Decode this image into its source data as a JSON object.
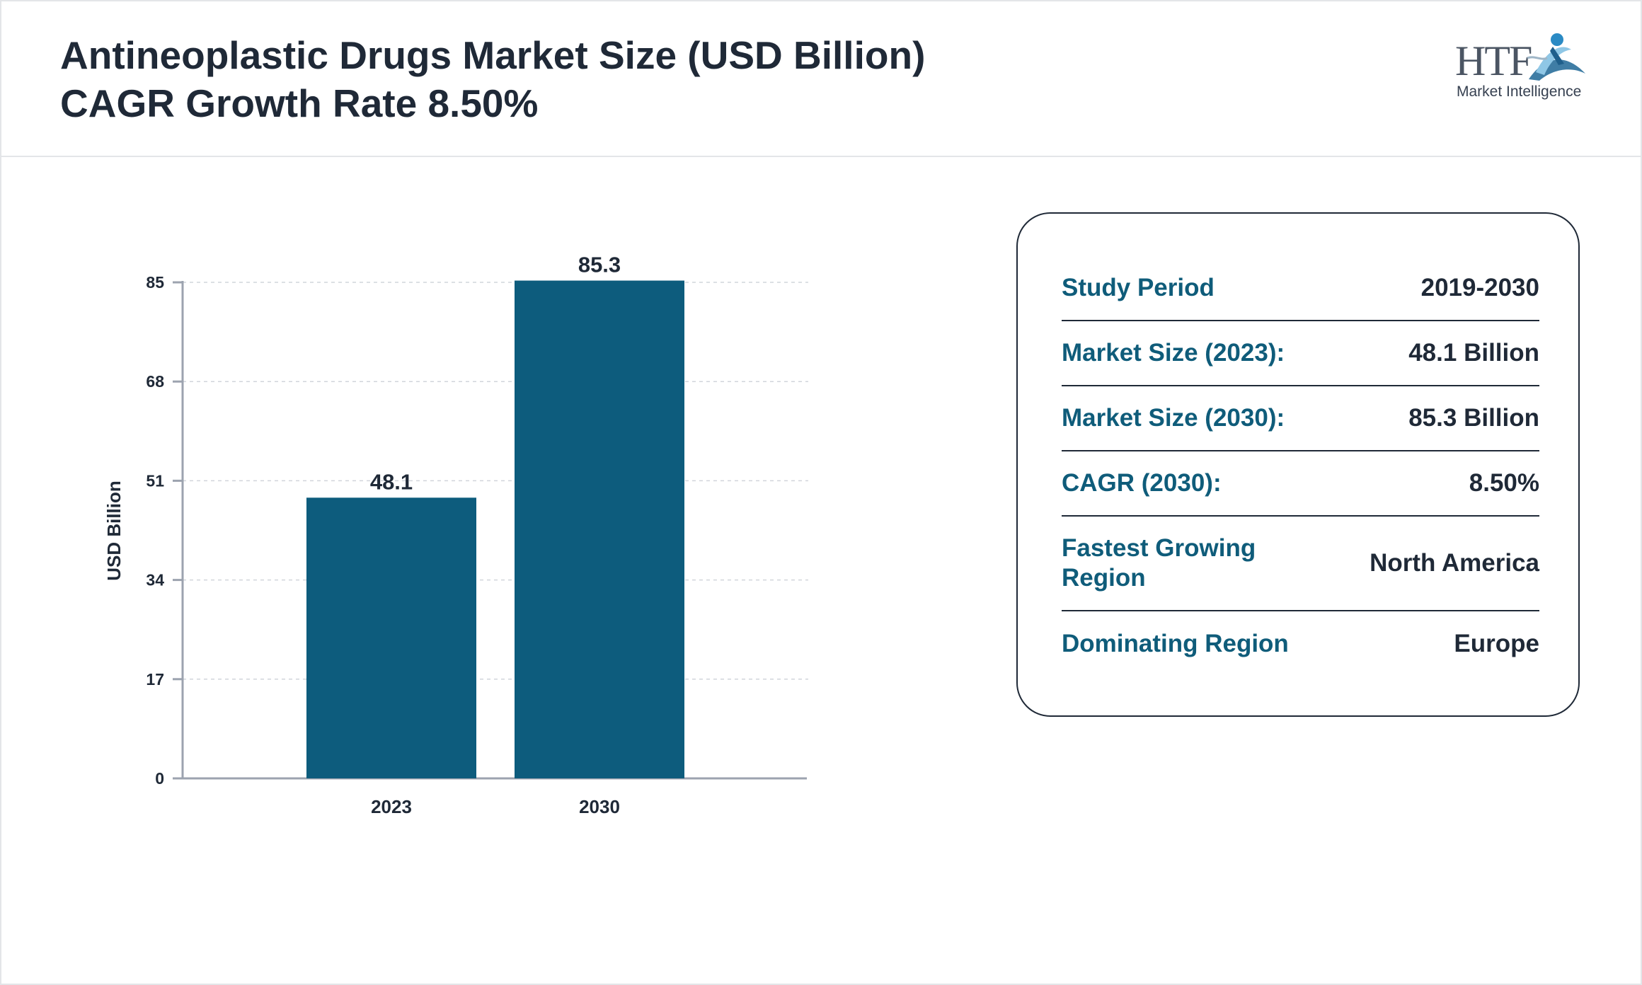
{
  "header": {
    "title_line1": "Antineoplastic Drugs Market Size (USD Billion)",
    "title_line2": "CAGR Growth Rate 8.50%"
  },
  "logo": {
    "brand": "HTF",
    "tagline": "Market Intelligence",
    "icon": "htf-swimmer-logo-icon"
  },
  "colors": {
    "bar": "#0d5c7d",
    "accent_text": "#0f5c7a",
    "text": "#1f2937",
    "axis": "#9ca3af"
  },
  "chart_data": {
    "type": "bar",
    "title": "",
    "xlabel": "",
    "ylabel": "USD Billion",
    "categories": [
      "2023",
      "2030"
    ],
    "values": [
      48.1,
      85.3
    ],
    "value_labels": [
      "48.1",
      "85.3"
    ],
    "yticks": [
      0,
      17,
      34,
      51,
      68,
      85
    ],
    "ylim": [
      0,
      85
    ],
    "grid": true,
    "legend": "none"
  },
  "summary": {
    "rows": [
      {
        "key": "Study Period",
        "value": "2019-2030"
      },
      {
        "key": "Market Size (2023):",
        "value": "48.1 Billion"
      },
      {
        "key": "Market Size (2030):",
        "value": "85.3 Billion"
      },
      {
        "key": "CAGR (2030):",
        "value": "8.50%"
      },
      {
        "key": "Fastest Growing Region",
        "value": "North America"
      },
      {
        "key": "Dominating Region",
        "value": "Europe"
      }
    ]
  }
}
